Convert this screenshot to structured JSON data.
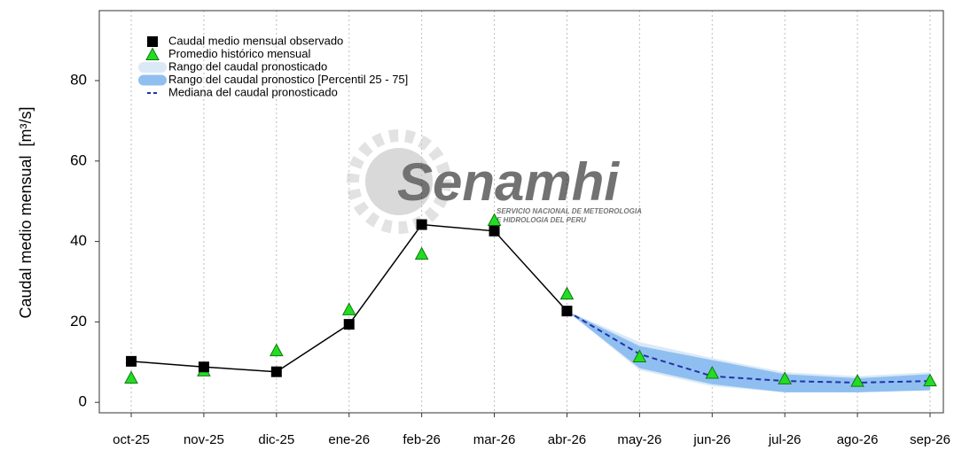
{
  "chart_data": {
    "type": "line",
    "ylabel": "Caudal medio mensual",
    "yunit": "[m³/s]",
    "categories": [
      "oct-25",
      "nov-25",
      "dic-25",
      "ene-26",
      "feb-26",
      "mar-26",
      "abr-26",
      "may-26",
      "jun-26",
      "jul-26",
      "ago-26",
      "sep-26"
    ],
    "ylim": [
      -2.6,
      97.4
    ],
    "yticks": [
      0,
      20,
      40,
      60,
      80
    ],
    "grid": "x",
    "legend": "upper-left",
    "watermark": {
      "logo": "Senamhi",
      "line1": "SERVICIO NACIONAL DE METEOROLOGIA",
      "line2": "E HIDROLOGIA DEL PERU"
    },
    "series": [
      {
        "name": "Caudal medio mensual observado",
        "type": "line",
        "marker": "square",
        "color": "#000000",
        "values": [
          10.2,
          8.8,
          7.6,
          19.4,
          44.2,
          42.6,
          22.7,
          null,
          null,
          null,
          null,
          null
        ]
      },
      {
        "name": "Promedio histórico mensual",
        "type": "scatter",
        "marker": "triangle",
        "color": "#22dd22",
        "values": [
          6.1,
          7.9,
          12.9,
          23.1,
          36.9,
          45.3,
          27.0,
          11.4,
          7.3,
          5.9,
          5.3,
          5.4
        ]
      },
      {
        "name": "Rango del caudal pronosticado",
        "type": "band",
        "color": "#dbe9f7",
        "lower": [
          null,
          null,
          null,
          null,
          null,
          null,
          22.7,
          8.0,
          4.0,
          2.5,
          2.5,
          3.0
        ],
        "upper": [
          null,
          null,
          null,
          null,
          null,
          null,
          22.7,
          15.0,
          11.0,
          7.5,
          6.5,
          7.5
        ]
      },
      {
        "name": "Rango del caudal pronostico [Percentil 25 - 75]",
        "type": "band",
        "color": "#8fbff0",
        "lower": [
          null,
          null,
          null,
          null,
          null,
          null,
          22.7,
          8.5,
          4.5,
          2.5,
          2.5,
          3.0
        ],
        "upper": [
          null,
          null,
          null,
          null,
          null,
          null,
          22.7,
          14.0,
          10.5,
          7.0,
          6.0,
          7.0
        ]
      },
      {
        "name": "Mediana del caudal pronosticado",
        "type": "line",
        "dash": true,
        "color": "#2233aa",
        "values": [
          null,
          null,
          null,
          null,
          null,
          null,
          22.7,
          12.0,
          6.5,
          5.3,
          4.9,
          5.3
        ]
      }
    ]
  }
}
